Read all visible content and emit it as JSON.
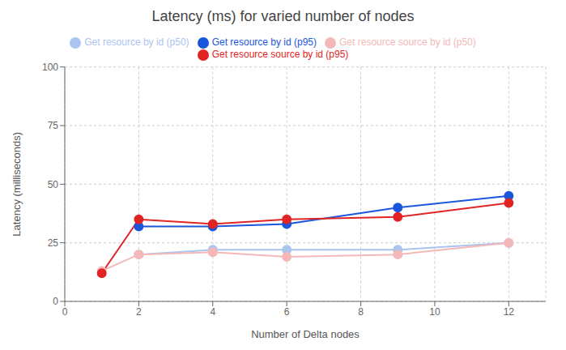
{
  "chart_data": {
    "type": "line",
    "title": "Latency (ms) for varied number of nodes",
    "xlabel": "Number of Delta nodes",
    "ylabel": "Latency (milliseconds)",
    "xlim": [
      0,
      13
    ],
    "xticks": [
      0,
      2,
      4,
      6,
      8,
      10,
      12
    ],
    "ylim": [
      0,
      100
    ],
    "yticks": [
      0,
      25,
      50,
      75,
      100
    ],
    "grid": true,
    "legend": "top",
    "series": [
      {
        "name": "Get resource by id (p50)",
        "color": "#aac4f0",
        "marker": "circle",
        "x": [
          2,
          4,
          6,
          9,
          12
        ],
        "values": [
          20,
          22,
          22,
          22,
          25
        ]
      },
      {
        "name": "Get resource by id (p95)",
        "color": "#1a56db",
        "marker": "circle",
        "x": [
          2,
          4,
          6,
          9,
          12
        ],
        "values": [
          32,
          32,
          33,
          40,
          45
        ]
      },
      {
        "name": "Get resource source by id (p50)",
        "color": "#f4b8b8",
        "marker": "circle",
        "x": [
          1,
          2,
          4,
          6,
          9,
          12
        ],
        "values": [
          13,
          20,
          21,
          19,
          20,
          25
        ]
      },
      {
        "name": "Get resource source by id (p95)",
        "color": "#e02424",
        "marker": "circle",
        "x": [
          1,
          2,
          4,
          6,
          9,
          12
        ],
        "values": [
          12,
          35,
          33,
          35,
          36,
          42
        ]
      }
    ]
  }
}
